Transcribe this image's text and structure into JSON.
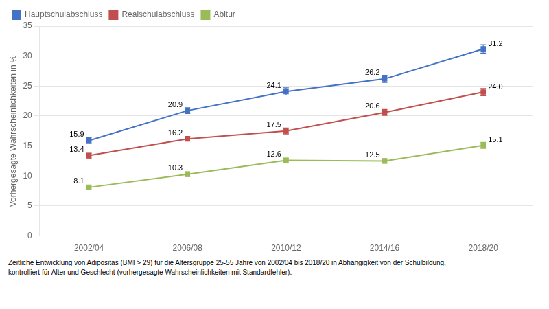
{
  "chart_data": {
    "type": "line",
    "categories": [
      "2002/04",
      "2006/08",
      "2010/12",
      "2014/16",
      "2018/20"
    ],
    "series": [
      {
        "name": "Hauptschulabschluss",
        "color": "#4472C4",
        "values": [
          15.9,
          20.9,
          24.1,
          26.2,
          31.2
        ],
        "errors": [
          0.5,
          0.5,
          0.6,
          0.6,
          0.7
        ],
        "value_labels": [
          "15.9",
          "20.9",
          "24.1",
          "26.2",
          "31.2"
        ]
      },
      {
        "name": "Realschulabschluss",
        "color": "#C0504D",
        "values": [
          13.4,
          16.2,
          17.5,
          20.6,
          24.0
        ],
        "errors": [
          0.4,
          0.4,
          0.5,
          0.5,
          0.6
        ],
        "value_labels": [
          "13.4",
          "16.2",
          "17.5",
          "20.6",
          "24.0"
        ]
      },
      {
        "name": "Abitur",
        "color": "#9BBB59",
        "values": [
          8.1,
          10.3,
          12.6,
          12.5,
          15.1
        ],
        "errors": [
          0.4,
          0.4,
          0.4,
          0.4,
          0.5
        ],
        "value_labels": [
          "8.1",
          "10.3",
          "12.6",
          "12.5",
          "15.1"
        ]
      }
    ],
    "ylabel": "Vorhergesagte Wahrscheinlichkeiten in %",
    "ylim": [
      0,
      35
    ],
    "yticks": [
      0,
      5,
      10,
      15,
      20,
      25,
      30,
      35
    ],
    "grid": "y",
    "legend": "upper left",
    "data_labels": true,
    "marker": "square",
    "annotations": [
      "Zeitliche Entwicklung von Adipositas (BMI > 29) für die Altersgruppe 25-55 Jahre von 2002/04 bis 2018/20 in Abhängigkeit von der Schulbildung,",
      "kontrolliert für Alter und Geschlecht (vorhergesagte Wahrscheinlichkeiten mit Standardfehler)."
    ]
  }
}
